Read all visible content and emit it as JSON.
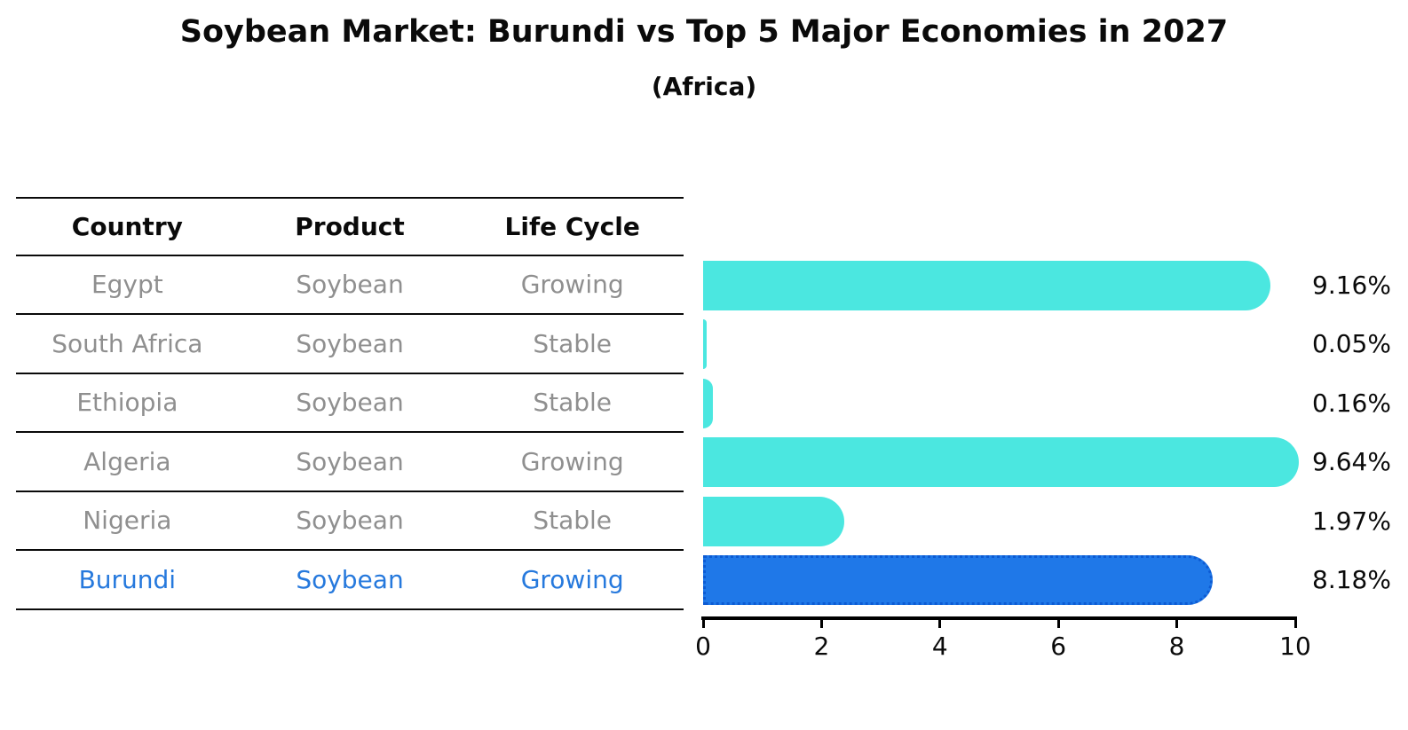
{
  "title": "Soybean Market: Burundi vs Top 5 Major Economies in 2027",
  "subtitle": "(Africa)",
  "table": {
    "headers": [
      "Country",
      "Product",
      "Life Cycle"
    ],
    "rows": [
      {
        "country": "Egypt",
        "product": "Soybean",
        "life_cycle": "Growing",
        "highlighted": false
      },
      {
        "country": "South Africa",
        "product": "Soybean",
        "life_cycle": "Stable",
        "highlighted": false
      },
      {
        "country": "Ethiopia",
        "product": "Soybean",
        "life_cycle": "Stable",
        "highlighted": false
      },
      {
        "country": "Algeria",
        "product": "Soybean",
        "life_cycle": "Growing",
        "highlighted": false
      },
      {
        "country": "Nigeria",
        "product": "Soybean",
        "life_cycle": "Stable",
        "highlighted": false
      },
      {
        "country": "Burundi",
        "product": "Soybean",
        "life_cycle": "Growing",
        "highlighted": true
      }
    ]
  },
  "chart_data": {
    "type": "bar",
    "orientation": "horizontal",
    "title": "Soybean Market: Burundi vs Top 5 Major Economies in 2027",
    "subtitle": "(Africa)",
    "categories": [
      "Egypt",
      "South Africa",
      "Ethiopia",
      "Algeria",
      "Nigeria",
      "Burundi"
    ],
    "values": [
      9.16,
      0.05,
      0.16,
      9.64,
      1.97,
      8.18
    ],
    "value_labels": [
      "9.16%",
      "0.05%",
      "0.16%",
      "9.64%",
      "1.97%",
      "8.18%"
    ],
    "xlim": [
      0,
      10
    ],
    "xticks": [
      "0",
      "2",
      "4",
      "6",
      "8",
      "10"
    ],
    "highlight_index": 5,
    "grid": false,
    "legend": "none"
  },
  "colors": {
    "bar": "#4BE7E0",
    "highlight_bar": "#1F78E8",
    "highlight_border": "#0D5BD3",
    "highlight_text": "#2679DD",
    "table_text": "#8F8F8F",
    "heading_text": "#0A0A0A",
    "axis": "#000000"
  }
}
